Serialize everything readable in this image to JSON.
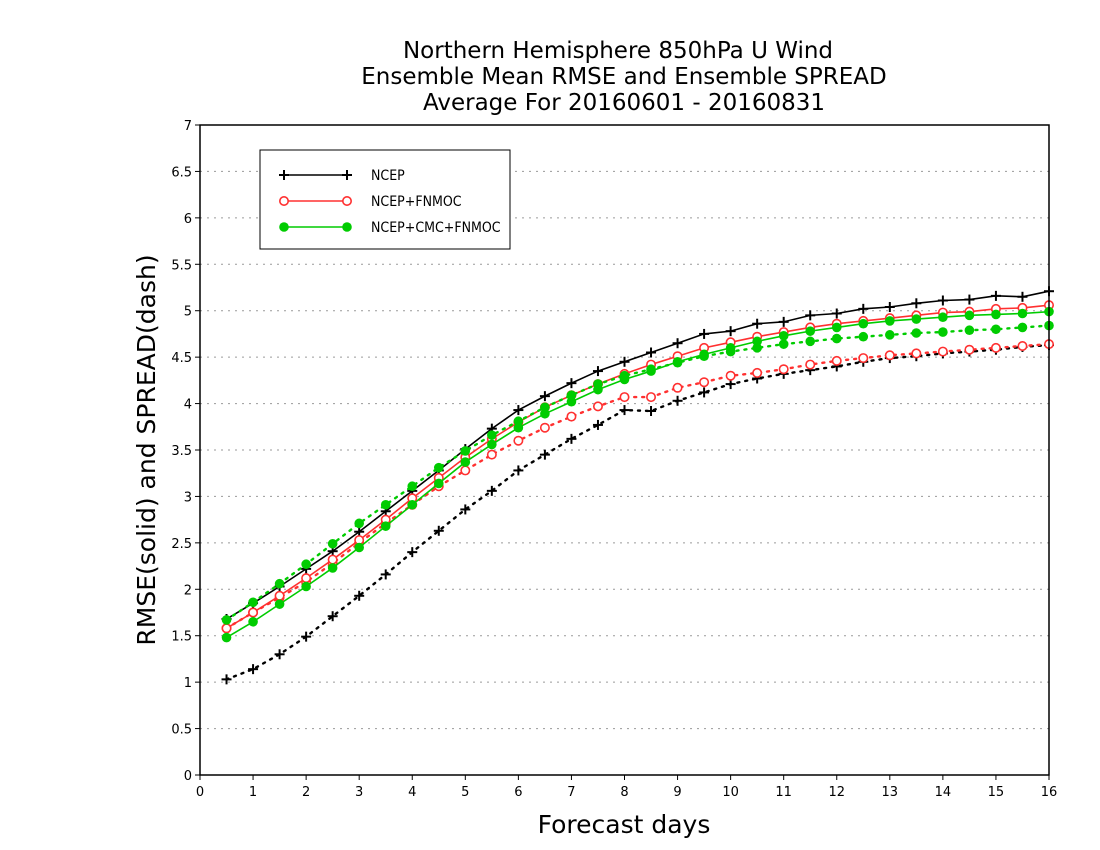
{
  "chart_data": {
    "type": "line",
    "title": [
      "Northern Hemisphere 850hPa U Wind",
      "Ensemble Mean RMSE and Ensemble SPREAD",
      "Average For 20160601 - 20160831"
    ],
    "xlabel": "Forecast days",
    "ylabel": "RMSE(solid) and SPREAD(dash)",
    "xlim": [
      0,
      16
    ],
    "ylim": [
      0,
      7
    ],
    "xticks": [
      "0",
      "1",
      "2",
      "3",
      "4",
      "5",
      "6",
      "7",
      "8",
      "9",
      "10",
      "11",
      "12",
      "13",
      "14",
      "15",
      "16"
    ],
    "yticks": [
      "0",
      "0.5",
      "1",
      "1.5",
      "2",
      "2.5",
      "3",
      "3.5",
      "4",
      "4.5",
      "5",
      "5.5",
      "6",
      "6.5",
      "7"
    ],
    "grid": "horizontal dotted",
    "legend_position": "top-left",
    "x": [
      0.5,
      1,
      1.5,
      2,
      2.5,
      3,
      3.5,
      4,
      4.5,
      5,
      5.5,
      6,
      6.5,
      7,
      7.5,
      8,
      8.5,
      9,
      9.5,
      10,
      10.5,
      11,
      11.5,
      12,
      12.5,
      13,
      13.5,
      14,
      14.5,
      15,
      15.5,
      16
    ],
    "series": [
      {
        "name": "NCEP",
        "color": "#000000",
        "marker": "plus",
        "rmse": [
          1.68,
          1.85,
          2.03,
          2.22,
          2.41,
          2.62,
          2.84,
          3.06,
          3.28,
          3.51,
          3.73,
          3.93,
          4.08,
          4.22,
          4.35,
          4.45,
          4.55,
          4.65,
          4.75,
          4.78,
          4.86,
          4.88,
          4.95,
          4.97,
          5.02,
          5.04,
          5.08,
          5.11,
          5.12,
          5.16,
          5.15,
          5.21
        ],
        "spread": [
          1.03,
          1.14,
          1.3,
          1.49,
          1.71,
          1.93,
          2.16,
          2.4,
          2.63,
          2.86,
          3.06,
          3.28,
          3.45,
          3.62,
          3.77,
          3.93,
          3.92,
          4.03,
          4.12,
          4.21,
          4.27,
          4.32,
          4.36,
          4.4,
          4.45,
          4.49,
          4.51,
          4.54,
          4.56,
          4.58,
          4.61,
          4.63
        ]
      },
      {
        "name": "NCEP+FNMOC",
        "color": "#ff3030",
        "marker": "open-circle",
        "rmse": [
          1.58,
          1.75,
          1.93,
          2.12,
          2.32,
          2.53,
          2.75,
          2.98,
          3.2,
          3.42,
          3.62,
          3.8,
          3.96,
          4.09,
          4.21,
          4.32,
          4.42,
          4.51,
          4.6,
          4.66,
          4.72,
          4.77,
          4.82,
          4.86,
          4.89,
          4.92,
          4.95,
          4.98,
          4.99,
          5.02,
          5.03,
          5.06
        ],
        "spread": [
          1.58,
          1.75,
          1.91,
          2.08,
          2.28,
          2.5,
          2.71,
          2.91,
          3.11,
          3.28,
          3.45,
          3.6,
          3.74,
          3.86,
          3.97,
          4.07,
          4.07,
          4.17,
          4.23,
          4.3,
          4.33,
          4.37,
          4.42,
          4.46,
          4.49,
          4.52,
          4.54,
          4.56,
          4.58,
          4.6,
          4.62,
          4.64
        ]
      },
      {
        "name": "NCEP+CMC+FNMOC",
        "color": "#00cc00",
        "marker": "filled-circle",
        "rmse": [
          1.48,
          1.65,
          1.84,
          2.03,
          2.23,
          2.45,
          2.68,
          2.91,
          3.14,
          3.37,
          3.56,
          3.74,
          3.89,
          4.02,
          4.15,
          4.26,
          4.35,
          4.45,
          4.53,
          4.6,
          4.67,
          4.73,
          4.78,
          4.82,
          4.86,
          4.89,
          4.91,
          4.93,
          4.95,
          4.96,
          4.97,
          4.99
        ],
        "spread": [
          1.67,
          1.86,
          2.06,
          2.27,
          2.49,
          2.71,
          2.91,
          3.11,
          3.31,
          3.49,
          3.66,
          3.81,
          3.96,
          4.09,
          4.21,
          4.3,
          4.37,
          4.44,
          4.51,
          4.56,
          4.6,
          4.64,
          4.67,
          4.7,
          4.72,
          4.74,
          4.76,
          4.77,
          4.79,
          4.8,
          4.82,
          4.84
        ]
      }
    ]
  }
}
